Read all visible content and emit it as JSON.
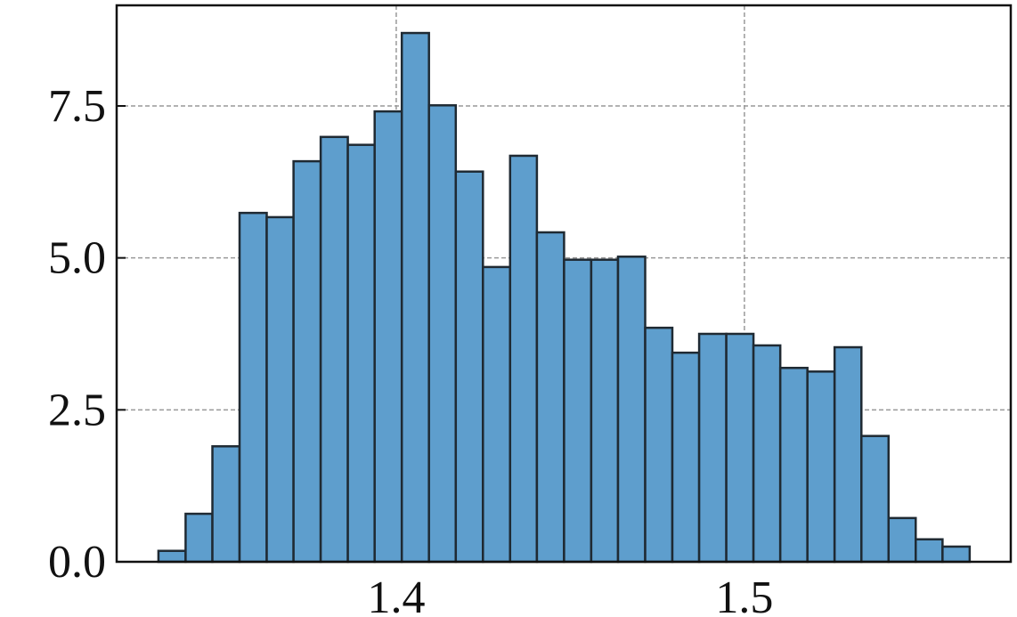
{
  "chart_data": {
    "type": "histogram",
    "bins": [
      1.3317,
      1.3395,
      1.3472,
      1.355,
      1.3628,
      1.3705,
      1.3783,
      1.3861,
      1.3938,
      1.4016,
      1.4094,
      1.4171,
      1.4249,
      1.4327,
      1.4404,
      1.4482,
      1.456,
      1.4637,
      1.4715,
      1.4793,
      1.487,
      1.4948,
      1.5026,
      1.5103,
      1.5181,
      1.5259,
      1.5336,
      1.5414,
      1.5492,
      1.5569,
      1.5647
    ],
    "values": [
      0.18,
      0.79,
      1.9,
      5.74,
      5.67,
      6.59,
      6.99,
      6.86,
      7.41,
      8.7,
      7.51,
      6.42,
      4.85,
      6.68,
      5.42,
      4.97,
      4.97,
      5.02,
      3.85,
      3.44,
      3.75,
      3.75,
      3.56,
      3.19,
      3.13,
      3.53,
      2.07,
      0.72,
      0.37,
      0.25
    ],
    "color": "#5e9ecd",
    "edgecolor": "#1f2a33",
    "xlim": [
      1.3197,
      1.5765
    ],
    "xticks": [
      1.4,
      1.5
    ],
    "ylim": [
      0,
      9.155
    ],
    "yticks": [
      {
        "value": 0,
        "label": "0.0"
      },
      {
        "value": 2.5,
        "label": "2.5"
      },
      {
        "value": 5,
        "label": "5.0"
      },
      {
        "value": 7.5,
        "label": "7.5"
      }
    ],
    "grid": true
  }
}
